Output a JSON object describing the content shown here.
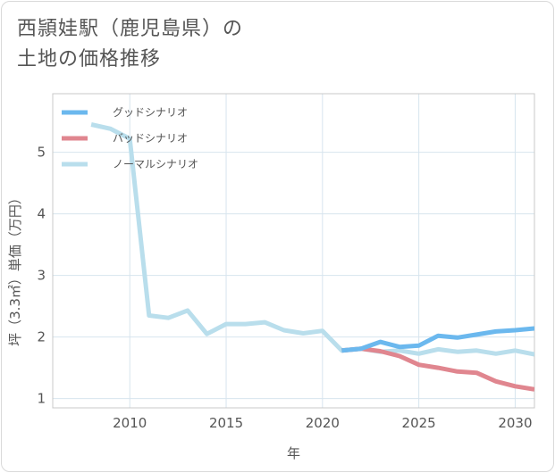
{
  "page": {
    "title_line1": "西頴娃駅（鹿児島県）の",
    "title_line2": "土地の価格推移"
  },
  "chart_data": {
    "type": "line",
    "xlabel": "年",
    "ylabel": "坪（3.3㎡）単価（万円）",
    "xlim": [
      2006.0,
      2031.0
    ],
    "ylim": [
      0.85,
      5.95
    ],
    "xticks": [
      2010,
      2015,
      2020,
      2025,
      2030
    ],
    "yticks": [
      1,
      2,
      3,
      4,
      5
    ],
    "grid": true,
    "legend_position": "top-left",
    "series": [
      {
        "name": "グッドシナリオ",
        "color": "#6bb8ee",
        "x": [
          2021,
          2022,
          2023,
          2024,
          2025,
          2026,
          2027,
          2028,
          2029,
          2030,
          2031
        ],
        "y": [
          1.78,
          1.81,
          1.92,
          1.84,
          1.86,
          2.02,
          1.99,
          2.04,
          2.09,
          2.11,
          2.14
        ]
      },
      {
        "name": "バッドシナリオ",
        "color": "#e0868f",
        "x": [
          2021,
          2022,
          2023,
          2024,
          2025,
          2026,
          2027,
          2028,
          2029,
          2030,
          2031
        ],
        "y": [
          1.78,
          1.81,
          1.77,
          1.69,
          1.55,
          1.5,
          1.44,
          1.42,
          1.28,
          1.2,
          1.15
        ]
      },
      {
        "name": "ノーマルシナリオ",
        "color": "#b9deec",
        "x": [
          2008,
          2009,
          2010,
          2011,
          2012,
          2013,
          2014,
          2015,
          2016,
          2017,
          2018,
          2019,
          2020,
          2021,
          2022,
          2023,
          2024,
          2025,
          2026,
          2027,
          2028,
          2029,
          2030,
          2031
        ],
        "y": [
          5.45,
          5.38,
          5.22,
          2.35,
          2.31,
          2.43,
          2.05,
          2.21,
          2.21,
          2.24,
          2.11,
          2.06,
          2.1,
          1.78,
          1.81,
          1.76,
          1.78,
          1.73,
          1.8,
          1.76,
          1.78,
          1.73,
          1.78,
          1.72
        ]
      }
    ]
  }
}
